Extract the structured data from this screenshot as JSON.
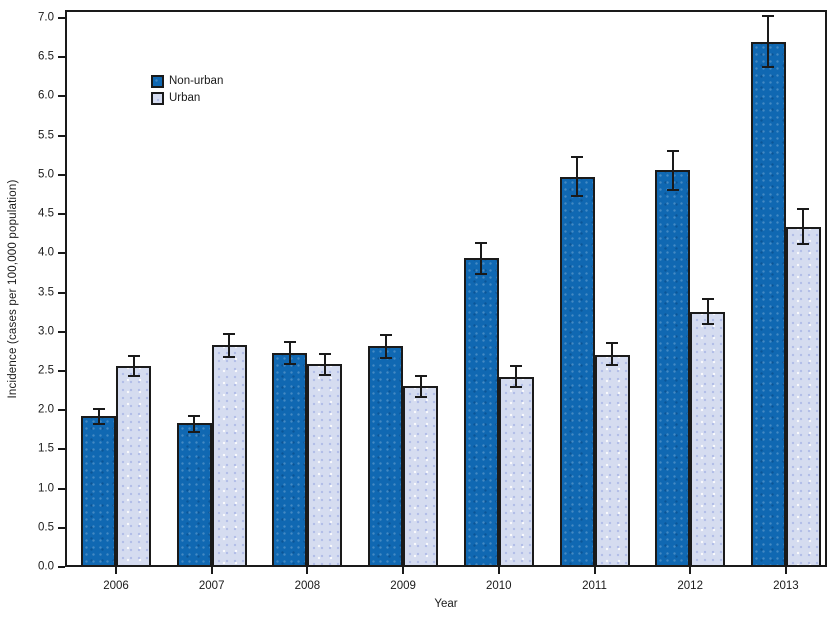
{
  "figure": {
    "background": "#ffffff",
    "axis_color": "#1a1a1a"
  },
  "chart_data": {
    "type": "bar",
    "title": "",
    "xlabel": "Year",
    "ylabel": "Incidence (cases per 100,000 population)",
    "categories": [
      "2006",
      "2007",
      "2008",
      "2009",
      "2010",
      "2011",
      "2012",
      "2013"
    ],
    "series": [
      {
        "name": "Non-urban",
        "color": "#1068b2",
        "values": [
          1.93,
          1.83,
          2.73,
          2.82,
          3.94,
          4.97,
          5.06,
          6.7
        ],
        "ci_low": [
          1.82,
          1.72,
          2.59,
          2.66,
          3.74,
          4.73,
          4.81,
          6.37
        ],
        "ci_high": [
          2.02,
          1.93,
          2.87,
          2.96,
          4.13,
          5.23,
          5.3,
          7.03
        ]
      },
      {
        "name": "Urban",
        "color": "#d5dcf0",
        "values": [
          2.56,
          2.83,
          2.59,
          2.31,
          2.42,
          2.7,
          3.25,
          4.34
        ],
        "ci_low": [
          2.43,
          2.68,
          2.45,
          2.17,
          2.3,
          2.57,
          3.1,
          4.12
        ],
        "ci_high": [
          2.69,
          2.97,
          2.72,
          2.44,
          2.56,
          2.86,
          3.42,
          4.56
        ]
      }
    ],
    "ylim": [
      0.0,
      7.0
    ],
    "ytick_step": 0.5,
    "ytick_labels": [
      "0.0",
      "0.5",
      "1.0",
      "1.5",
      "2.0",
      "2.5",
      "3.0",
      "3.5",
      "4.0",
      "4.5",
      "5.0",
      "5.5",
      "6.0",
      "6.5",
      "7.0"
    ],
    "grid": false,
    "error_bars": true,
    "legend_position": "upper-left-inside"
  }
}
